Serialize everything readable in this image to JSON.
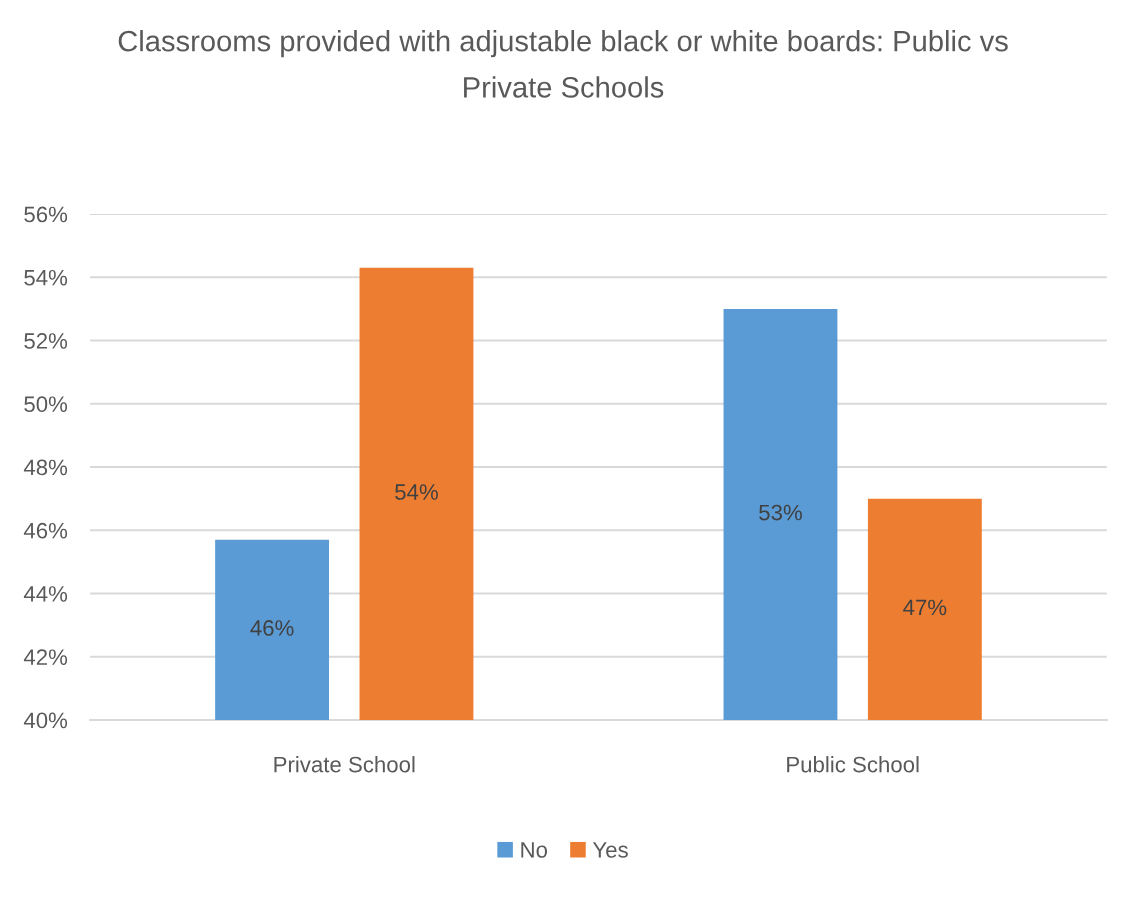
{
  "chart_data": {
    "type": "bar",
    "title": "Classrooms provided with adjustable black or white boards: Public vs Private Schools",
    "categories": [
      "Private School",
      "Public School"
    ],
    "series": [
      {
        "name": "No",
        "color": "#5b9bd5",
        "values": [
          45.7,
          53.0
        ],
        "value_labels": [
          "46%",
          "53%"
        ]
      },
      {
        "name": "Yes",
        "color": "#ed7d31",
        "values": [
          54.3,
          47.0
        ],
        "value_labels": [
          "54%",
          "47%"
        ]
      }
    ],
    "ylim": [
      40,
      56
    ],
    "yticks": [
      {
        "value": 40,
        "label": "40%"
      },
      {
        "value": 42,
        "label": "42%"
      },
      {
        "value": 44,
        "label": "44%"
      },
      {
        "value": 46,
        "label": "46%"
      },
      {
        "value": 48,
        "label": "48%"
      },
      {
        "value": 50,
        "label": "50%"
      },
      {
        "value": 52,
        "label": "52%"
      },
      {
        "value": 54,
        "label": "54%"
      },
      {
        "value": 56,
        "label": "56%"
      }
    ],
    "grid": "y",
    "legend": "bottom"
  }
}
